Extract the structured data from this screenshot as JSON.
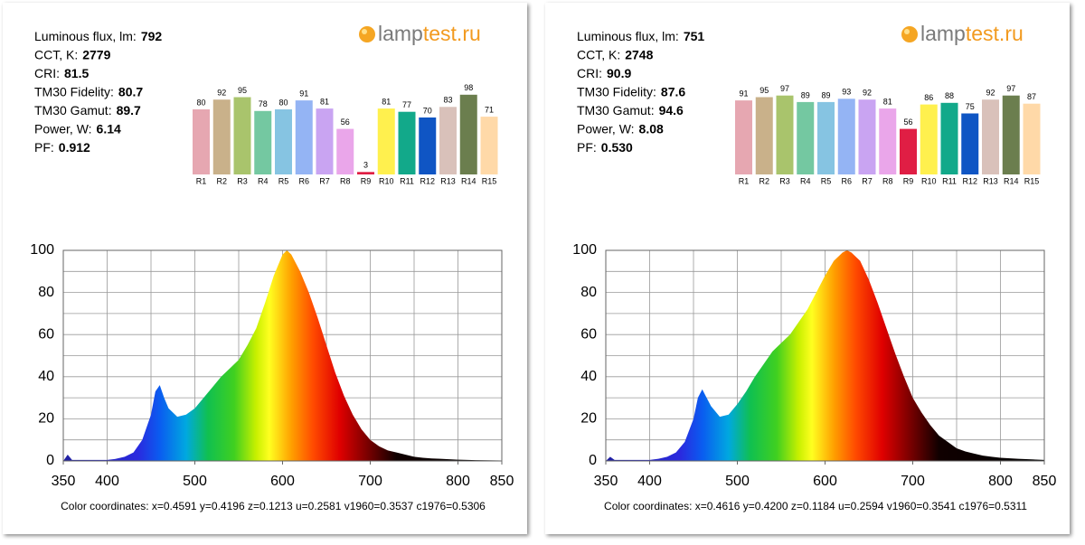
{
  "panels": [
    {
      "brand": [
        "lamp",
        "test.ru"
      ],
      "stats": [
        {
          "label": "Luminous flux, lm:",
          "value": "792"
        },
        {
          "label": "CCT, K:",
          "value": "2779"
        },
        {
          "label": "CRI:",
          "value": "81.5"
        },
        {
          "label": "TM30 Fidelity:",
          "value": "80.7"
        },
        {
          "label": "TM30 Gamut:",
          "value": "89.7"
        },
        {
          "label": "Power, W:",
          "value": "6.14"
        },
        {
          "label": "PF:",
          "value": "0.912"
        }
      ],
      "cri_chart": {
        "type": "bar",
        "ylim": [
          0,
          100
        ],
        "categories": [
          "R1",
          "R2",
          "R3",
          "R4",
          "R5",
          "R6",
          "R7",
          "R8",
          "R9",
          "R10",
          "R11",
          "R12",
          "R13",
          "R14",
          "R15"
        ],
        "values": [
          80,
          92,
          95,
          78,
          80,
          91,
          81,
          56,
          3,
          81,
          77,
          70,
          83,
          98,
          71
        ],
        "colors": [
          "#e6a7b1",
          "#c9b18a",
          "#a9c46c",
          "#74c8a1",
          "#86c4e2",
          "#94b4f4",
          "#c9a4f2",
          "#eaa6ea",
          "#e01e44",
          "#fff04e",
          "#12a98a",
          "#0f55c4",
          "#d9c1ba",
          "#6b7e4e",
          "#ffd9a8"
        ]
      },
      "spectrum": {
        "type": "area",
        "xlim": [
          350,
          850
        ],
        "ylim": [
          0,
          100
        ],
        "xticks": [
          350,
          400,
          500,
          600,
          700,
          800,
          850
        ],
        "yticks": [
          0,
          20,
          40,
          60,
          80,
          100
        ],
        "x_grid": [
          350,
          400,
          450,
          500,
          550,
          600,
          650,
          700,
          750,
          800,
          850
        ],
        "y_grid": [
          0,
          10,
          20,
          30,
          40,
          50,
          60,
          70,
          80,
          90,
          100
        ],
        "x": [
          350,
          355,
          360,
          370,
          380,
          390,
          400,
          410,
          420,
          430,
          440,
          450,
          455,
          460,
          465,
          470,
          480,
          490,
          500,
          510,
          520,
          530,
          540,
          550,
          560,
          570,
          580,
          590,
          600,
          605,
          610,
          620,
          630,
          640,
          650,
          660,
          670,
          680,
          690,
          700,
          710,
          720,
          730,
          740,
          750,
          760,
          770,
          780,
          790,
          800,
          820,
          850
        ],
        "values": [
          0,
          3,
          0.5,
          0.5,
          0.5,
          0.5,
          0.5,
          1,
          2,
          4,
          10,
          22,
          33,
          36,
          30,
          25,
          21,
          22,
          25,
          30,
          35,
          40,
          44,
          48,
          55,
          63,
          75,
          88,
          98,
          100,
          98,
          90,
          80,
          68,
          55,
          42,
          31,
          22,
          15,
          10,
          7,
          5,
          4,
          3,
          2,
          1.5,
          1.2,
          1,
          0.8,
          0.6,
          0.4,
          0.2
        ]
      },
      "coordinates": "Color coordinates: x=0.4591 y=0.4196 z=0.1213 u=0.2581 v1960=0.3537 c1976=0.5306"
    },
    {
      "brand": [
        "lamp",
        "test.ru"
      ],
      "stats": [
        {
          "label": "Luminous flux, lm:",
          "value": "751"
        },
        {
          "label": "CCT, K:",
          "value": "2748"
        },
        {
          "label": "CRI:",
          "value": "90.9"
        },
        {
          "label": "TM30 Fidelity:",
          "value": "87.6"
        },
        {
          "label": "TM30 Gamut:",
          "value": "94.6"
        },
        {
          "label": "Power, W:",
          "value": "8.08"
        },
        {
          "label": "PF:",
          "value": "0.530"
        }
      ],
      "cri_chart": {
        "type": "bar",
        "ylim": [
          0,
          100
        ],
        "categories": [
          "R1",
          "R2",
          "R3",
          "R4",
          "R5",
          "R6",
          "R7",
          "R8",
          "R9",
          "R10",
          "R11",
          "R12",
          "R13",
          "R14",
          "R15"
        ],
        "values": [
          91,
          95,
          97,
          89,
          89,
          93,
          92,
          81,
          56,
          86,
          88,
          75,
          92,
          97,
          87
        ],
        "colors": [
          "#e6a7b1",
          "#c9b18a",
          "#a9c46c",
          "#74c8a1",
          "#86c4e2",
          "#94b4f4",
          "#c9a4f2",
          "#eaa6ea",
          "#e01e44",
          "#fff04e",
          "#12a98a",
          "#0f55c4",
          "#d9c1ba",
          "#6b7e4e",
          "#ffd9a8"
        ]
      },
      "spectrum": {
        "type": "area",
        "xlim": [
          350,
          850
        ],
        "ylim": [
          0,
          100
        ],
        "xticks": [
          350,
          400,
          500,
          600,
          700,
          800,
          850
        ],
        "yticks": [
          0,
          20,
          40,
          60,
          80,
          100
        ],
        "x_grid": [
          350,
          400,
          450,
          500,
          550,
          600,
          650,
          700,
          750,
          800,
          850
        ],
        "y_grid": [
          0,
          10,
          20,
          30,
          40,
          50,
          60,
          70,
          80,
          90,
          100
        ],
        "x": [
          350,
          355,
          360,
          370,
          380,
          390,
          400,
          410,
          420,
          430,
          440,
          450,
          455,
          460,
          465,
          470,
          480,
          490,
          500,
          510,
          520,
          530,
          540,
          550,
          560,
          570,
          580,
          590,
          600,
          610,
          620,
          625,
          630,
          640,
          650,
          660,
          670,
          680,
          690,
          700,
          710,
          720,
          730,
          740,
          750,
          760,
          770,
          780,
          790,
          800,
          820,
          850
        ],
        "values": [
          0,
          2,
          0.5,
          0.5,
          0.5,
          0.5,
          0.5,
          1,
          2,
          4,
          9,
          20,
          30,
          34,
          30,
          26,
          21,
          22,
          27,
          33,
          40,
          46,
          52,
          56,
          60,
          66,
          72,
          80,
          88,
          95,
          99,
          100,
          99,
          95,
          86,
          75,
          63,
          51,
          40,
          30,
          23,
          17,
          12,
          9,
          6,
          4.5,
          3.5,
          2.5,
          2,
          1.5,
          1,
          0.5
        ]
      },
      "coordinates": "Color coordinates: x=0.4616 y=0.4200 z=0.1184 u=0.2594 v1960=0.3541 c1976=0.5311"
    }
  ]
}
